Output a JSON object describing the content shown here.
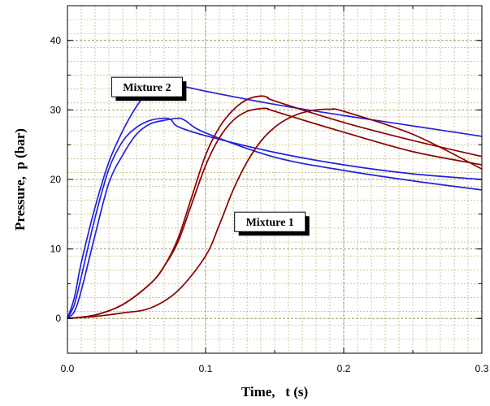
{
  "chart_data": {
    "type": "line",
    "xlabel": "Time,   t (s)",
    "ylabel": "Pressure,  p (bar)",
    "xlim": [
      0.0,
      0.3
    ],
    "ylim": [
      -5,
      45
    ],
    "x_ticks": [
      0.0,
      0.1,
      0.2,
      0.3
    ],
    "x_tick_labels": [
      "0.0",
      "0.1",
      "0.2",
      "0.3"
    ],
    "y_ticks": [
      0,
      10,
      20,
      30,
      40
    ],
    "y_tick_labels": [
      "0",
      "10",
      "20",
      "30",
      "40"
    ],
    "grid": true,
    "minor_grid_step_x": 0.01,
    "minor_grid_step_y": 2,
    "annotations": [
      {
        "text": "Mixture 2",
        "x": 0.032,
        "y": 34.7
      },
      {
        "text": "Mixture 1",
        "x": 0.121,
        "y": 15.3
      }
    ],
    "series": [
      {
        "group": "Mixture 2",
        "color": "#2222dd",
        "x": [
          0.0,
          0.005,
          0.01,
          0.02,
          0.03,
          0.04,
          0.05,
          0.06,
          0.07,
          0.075,
          0.08,
          0.1,
          0.15,
          0.2,
          0.25,
          0.3
        ],
        "y": [
          0,
          3,
          8,
          16,
          22.5,
          27,
          30.5,
          33,
          34,
          34,
          33.6,
          32.7,
          30.8,
          29.2,
          27.7,
          26.2
        ]
      },
      {
        "group": "Mixture 2",
        "color": "#2222dd",
        "x": [
          0.0,
          0.005,
          0.01,
          0.02,
          0.03,
          0.04,
          0.05,
          0.06,
          0.07,
          0.075,
          0.08,
          0.1,
          0.15,
          0.2,
          0.25,
          0.3
        ],
        "y": [
          0,
          2,
          6,
          14.5,
          21.5,
          25.5,
          27.5,
          28.5,
          28.8,
          28.6,
          27.6,
          26.3,
          23.9,
          22.1,
          20.8,
          20.0
        ]
      },
      {
        "group": "Mixture 2",
        "color": "#2222dd",
        "x": [
          0.0,
          0.005,
          0.01,
          0.02,
          0.03,
          0.04,
          0.05,
          0.06,
          0.07,
          0.08,
          0.085,
          0.1,
          0.15,
          0.2,
          0.25,
          0.3
        ],
        "y": [
          0,
          1,
          4,
          12,
          19.5,
          23.5,
          26.5,
          28,
          28.5,
          28.8,
          28.5,
          26.7,
          23.2,
          21.3,
          19.8,
          18.5
        ]
      },
      {
        "group": "Mixture 1",
        "color": "#8b0000",
        "x": [
          0.0,
          0.02,
          0.04,
          0.06,
          0.07,
          0.08,
          0.09,
          0.1,
          0.11,
          0.12,
          0.13,
          0.14,
          0.145,
          0.15,
          0.2,
          0.25,
          0.3
        ],
        "y": [
          0,
          0.5,
          2,
          5,
          7.5,
          11.5,
          17.5,
          23.5,
          27.5,
          30,
          31.5,
          32,
          31.8,
          31.3,
          28.2,
          25.6,
          23.3
        ]
      },
      {
        "group": "Mixture 1",
        "color": "#8b0000",
        "x": [
          0.0,
          0.02,
          0.04,
          0.06,
          0.07,
          0.08,
          0.09,
          0.1,
          0.11,
          0.12,
          0.13,
          0.14,
          0.145,
          0.15,
          0.2,
          0.25,
          0.3
        ],
        "y": [
          0,
          0.5,
          2,
          5,
          7.5,
          11,
          16.5,
          22,
          26,
          28.5,
          29.8,
          30.2,
          30.2,
          29.8,
          26.8,
          24.0,
          22.1
        ]
      },
      {
        "group": "Mixture 1",
        "color": "#8b0000",
        "x": [
          0.0,
          0.02,
          0.04,
          0.06,
          0.08,
          0.1,
          0.11,
          0.12,
          0.13,
          0.14,
          0.15,
          0.16,
          0.17,
          0.18,
          0.19,
          0.2,
          0.25,
          0.3
        ],
        "y": [
          0,
          0.3,
          0.8,
          1.5,
          4,
          9,
          13.5,
          18.5,
          22.5,
          25.5,
          27.5,
          28.8,
          29.6,
          30,
          30.1,
          29.8,
          26.5,
          21.5
        ]
      }
    ]
  }
}
